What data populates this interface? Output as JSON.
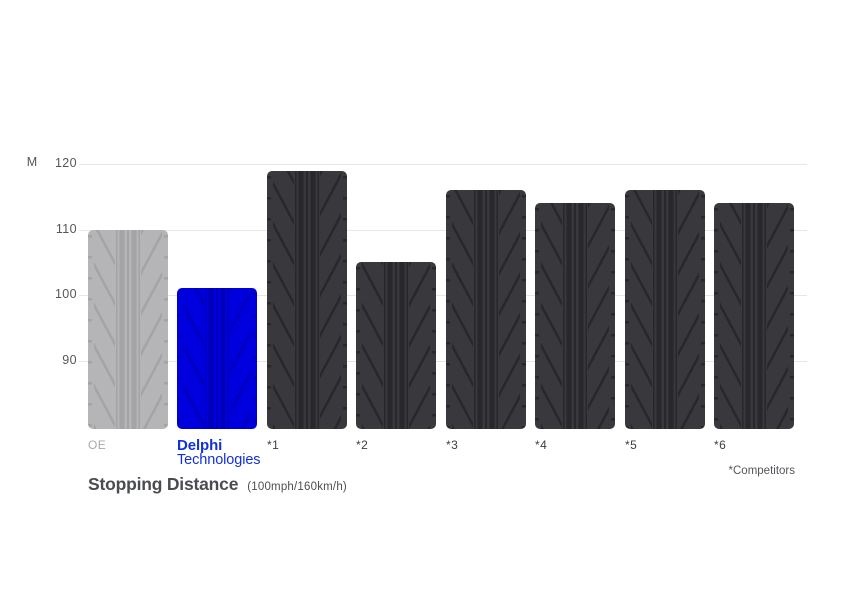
{
  "chart_data": {
    "type": "bar",
    "title": "Stopping Distance",
    "subtitle": "(100mph/160km/h)",
    "y_unit_label": "M",
    "footnote": "*Competitors",
    "y_ticks": [
      120,
      110,
      100,
      90
    ],
    "ylim": [
      79.5,
      122.5
    ],
    "grid": true,
    "legend_position": "none",
    "categories": [
      "OE",
      "Delphi Technologies",
      "*1",
      "*2",
      "*3",
      "*4",
      "*5",
      "*6"
    ],
    "bars": [
      {
        "label": "OE",
        "value": 110,
        "role": "oe"
      },
      {
        "label": "Delphi Technologies",
        "value": 101,
        "role": "delphi",
        "logo_lines": [
          "Delphi",
          "Technologies"
        ]
      },
      {
        "label": "*1",
        "value": 119,
        "role": "competitor"
      },
      {
        "label": "*2",
        "value": 105,
        "role": "competitor"
      },
      {
        "label": "*3",
        "value": 116,
        "role": "competitor"
      },
      {
        "label": "*4",
        "value": 114,
        "role": "competitor"
      },
      {
        "label": "*5",
        "value": 116,
        "role": "competitor"
      },
      {
        "label": "*6",
        "value": 114,
        "role": "competitor"
      }
    ]
  },
  "colors": {
    "background": "#ffffff",
    "gridline": "#e7e7e8",
    "axis_text": "#55565b",
    "title_text": "#4b4c51",
    "subtitle_text": "#4d4e53",
    "footnote_text": "#55565b",
    "category_text": "#3d3e43",
    "oe_label_text": "#a9a9ab",
    "delphi_logo_blue": "#1131d9",
    "bar_oe_base": "#b5b5b7",
    "bar_oe_groove": "#a4a4a6",
    "bar_delphi_base": "#0000de",
    "bar_delphi_groove": "#0000ba",
    "bar_competitor_base": "#39393d",
    "bar_competitor_groove": "#28282c"
  }
}
